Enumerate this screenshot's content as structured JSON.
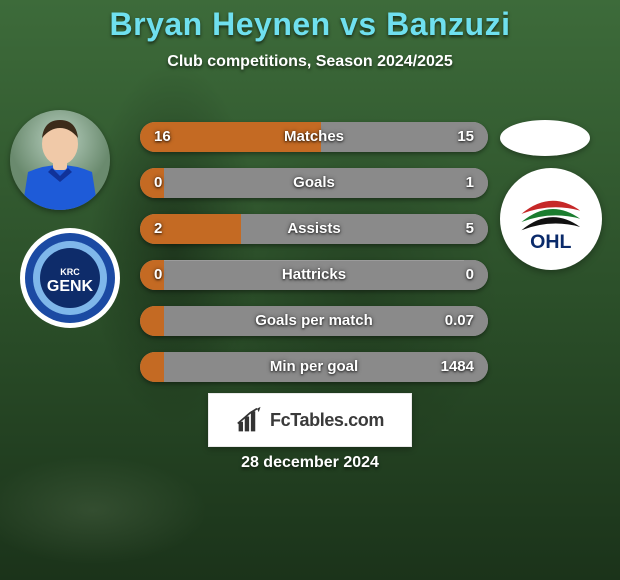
{
  "title_color": "#6fe0ef",
  "title": "Bryan Heynen vs Banzuzi",
  "subtitle": "Club competitions, Season 2024/2025",
  "date": "28 december 2024",
  "watermark": "FcTables.com",
  "bar_colors": {
    "left": "#c46a23",
    "right": "#8a8a8a",
    "track": "#8a8a8a"
  },
  "stats": [
    {
      "label": "Matches",
      "left_val": "16",
      "right_val": "15",
      "left_pct": 52,
      "right_pct": 48
    },
    {
      "label": "Goals",
      "left_val": "0",
      "right_val": "1",
      "left_pct": 7,
      "right_pct": 93
    },
    {
      "label": "Assists",
      "left_val": "2",
      "right_val": "5",
      "left_pct": 29,
      "right_pct": 71
    },
    {
      "label": "Hattricks",
      "left_val": "0",
      "right_val": "0",
      "left_pct": 7,
      "right_pct": 7
    },
    {
      "label": "Goals per match",
      "left_val": "",
      "right_val": "0.07",
      "left_pct": 7,
      "right_pct": 93
    },
    {
      "label": "Min per goal",
      "left_val": "",
      "right_val": "1484",
      "left_pct": 7,
      "right_pct": 93
    }
  ],
  "player_left": {
    "name": "Bryan Heynen",
    "shirt_color": "#1e5bd8",
    "skin_color": "#f0c9a8",
    "hair_color": "#3c2b1a"
  },
  "player_right": {
    "name": "Banzuzi"
  },
  "club_left": {
    "name": "KRC Genk",
    "text": "GENK",
    "ring_outer": "#ffffff",
    "ring_mid1": "#1b4aa3",
    "ring_mid2": "#7fb7ea",
    "ring_inner": "#0e2c6a",
    "center": "#0e2c6a"
  },
  "club_right": {
    "name": "OHL",
    "text": "OHL",
    "swoosh1": "#c62828",
    "swoosh2": "#1b7d2f",
    "swoosh3": "#111111",
    "text_color": "#0a2a6a"
  }
}
